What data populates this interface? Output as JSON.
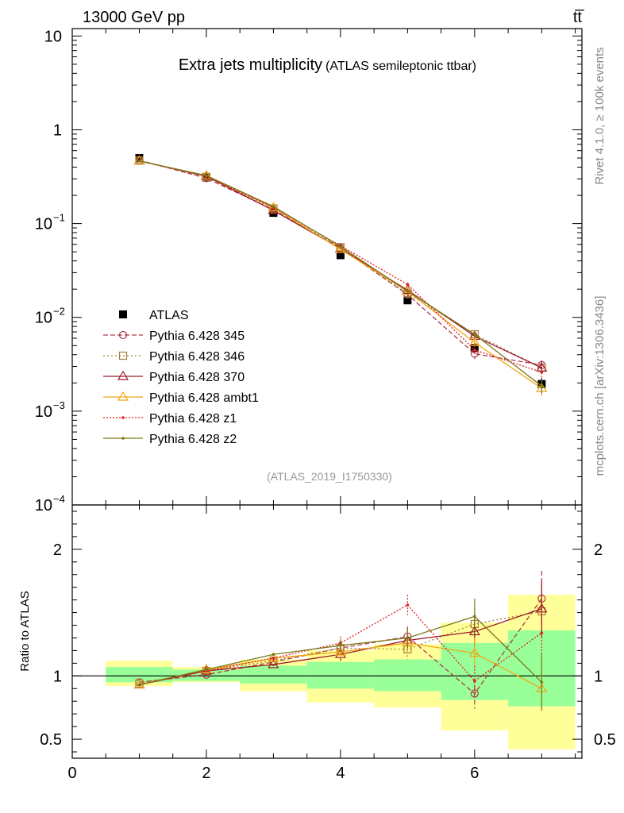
{
  "header": {
    "left": "13000 GeV pp",
    "right": "tt̅"
  },
  "side_labels": {
    "rivet": "Rivet 4.1.0, ≥ 100k events",
    "mcplots": "mcplots.cern.ch [arXiv:1306.3436]"
  },
  "colors": {
    "atlas": "#000000",
    "p345": "#b03a48",
    "p346": "#a68038",
    "p370": "#9c1a28",
    "ambt1": "#f0a818",
    "z1": "#e02020",
    "z2": "#7a7a18",
    "band_inner": "#99ff99",
    "band_outer": "#ffff99"
  },
  "chart_data": [
    {
      "type": "line",
      "title": "Extra jets multiplicity",
      "subtitle": "(ATLAS semileptonic ttbar)",
      "analysis_label": "(ATLAS_2019_I1750330)",
      "yscale": "log",
      "xlim": [
        0,
        7.6
      ],
      "ylim": [
        0.0001,
        12
      ],
      "y_ticks": [
        {
          "value": 10,
          "label": "10"
        },
        {
          "value": 1,
          "label": "1"
        },
        {
          "value": 0.1,
          "label": "10",
          "exp": "−1"
        },
        {
          "value": 0.01,
          "label": "10",
          "exp": "−2"
        },
        {
          "value": 0.001,
          "label": "10",
          "exp": "−3"
        },
        {
          "value": 0.0001,
          "label": "10",
          "exp": "−4"
        }
      ],
      "legend_position": "middle-left",
      "x": [
        1,
        2,
        3,
        4,
        5,
        6,
        7
      ],
      "data": {
        "name": "ATLAS",
        "values": [
          0.5,
          0.31,
          0.13,
          0.046,
          0.0152,
          0.0047,
          0.00195
        ],
        "errors": [
          0.03,
          0.015,
          0.008,
          0.003,
          0.0012,
          0.0006,
          0.0003
        ]
      },
      "series": [
        {
          "name": "Pythia 6.428 345",
          "key": "p345",
          "marker": "circle",
          "dash": "6,3",
          "values": [
            0.475,
            0.305,
            0.14,
            0.055,
            0.0175,
            0.0041,
            0.0031
          ],
          "errors": [
            0,
            0,
            0,
            0.002,
            0.0008,
            0.0005,
            0.0004
          ]
        },
        {
          "name": "Pythia 6.428 346",
          "key": "p346",
          "marker": "square",
          "dash": "2,3",
          "values": [
            0.47,
            0.315,
            0.145,
            0.056,
            0.018,
            0.0066,
            0.0029
          ],
          "errors": [
            0,
            0,
            0,
            0.002,
            0.0008,
            0.0006,
            0.0004
          ]
        },
        {
          "name": "Pythia 6.428 370",
          "key": "p370",
          "marker": "triangle",
          "dash": "",
          "values": [
            0.465,
            0.32,
            0.138,
            0.054,
            0.0195,
            0.0063,
            0.0029
          ],
          "errors": [
            0,
            0,
            0,
            0.002,
            0.0008,
            0.0006,
            0.0004
          ]
        },
        {
          "name": "Pythia 6.428 ambt1",
          "key": "ambt1",
          "marker": "triangle",
          "dash": "",
          "values": [
            0.465,
            0.325,
            0.148,
            0.053,
            0.019,
            0.0054,
            0.00175
          ],
          "errors": [
            0,
            0,
            0,
            0.002,
            0.0008,
            0.0006,
            0.0003
          ]
        },
        {
          "name": "Pythia 6.428 z1",
          "key": "z1",
          "marker": "dot",
          "dash": "2,2",
          "values": [
            0.465,
            0.32,
            0.148,
            0.058,
            0.0225,
            0.0045,
            0.0026
          ],
          "errors": [
            0,
            0,
            0,
            0.002,
            0.0008,
            0.0005,
            0.0004
          ]
        },
        {
          "name": "Pythia 6.428 z2",
          "key": "z2",
          "marker": "dot",
          "dash": "",
          "values": [
            0.465,
            0.325,
            0.152,
            0.057,
            0.019,
            0.0066,
            0.00185
          ],
          "errors": [
            0,
            0,
            0,
            0.002,
            0.0008,
            0.0006,
            0.0003
          ]
        }
      ]
    },
    {
      "type": "line",
      "ylabel": "Ratio to ATLAS",
      "xlim": [
        0,
        7.6
      ],
      "ylim": [
        0.35,
        2.35
      ],
      "x_ticks": [
        0,
        2,
        4,
        6
      ],
      "y_ticks": [
        0.5,
        1,
        2
      ],
      "reference_line": 1,
      "bands": [
        {
          "x0": 0.5,
          "x1": 1.5,
          "inner": [
            0.95,
            1.07
          ],
          "outer": [
            0.92,
            1.12
          ]
        },
        {
          "x0": 1.5,
          "x1": 2.5,
          "inner": [
            0.96,
            1.05
          ],
          "outer": [
            0.95,
            1.07
          ]
        },
        {
          "x0": 2.5,
          "x1": 3.5,
          "inner": [
            0.94,
            1.08
          ],
          "outer": [
            0.88,
            1.13
          ]
        },
        {
          "x0": 3.5,
          "x1": 4.5,
          "inner": [
            0.9,
            1.11
          ],
          "outer": [
            0.79,
            1.2
          ]
        },
        {
          "x0": 4.5,
          "x1": 5.5,
          "inner": [
            0.88,
            1.13
          ],
          "outer": [
            0.75,
            1.25
          ]
        },
        {
          "x0": 5.5,
          "x1": 6.5,
          "inner": [
            0.81,
            1.26
          ],
          "outer": [
            0.57,
            1.42
          ]
        },
        {
          "x0": 6.5,
          "x1": 7.5,
          "inner": [
            0.76,
            1.36
          ],
          "outer": [
            0.42,
            1.64
          ]
        }
      ],
      "x": [
        1,
        2,
        3,
        4,
        5,
        6,
        7
      ],
      "series": [
        {
          "name": "Pythia 6.428 345",
          "key": "p345",
          "marker": "circle",
          "dash": "6,3",
          "values": [
            0.95,
            1.01,
            1.11,
            1.22,
            1.31,
            0.86,
            1.61
          ],
          "errors": [
            0,
            0,
            0,
            0.05,
            0.08,
            0.12,
            0.22
          ]
        },
        {
          "name": "Pythia 6.428 346",
          "key": "p346",
          "marker": "square",
          "dash": "2,3",
          "values": [
            0.94,
            1.04,
            1.12,
            1.22,
            1.21,
            1.41,
            1.51
          ],
          "errors": [
            0,
            0,
            0,
            0.05,
            0.08,
            0.12,
            0.22
          ]
        },
        {
          "name": "Pythia 6.428 370",
          "key": "p370",
          "marker": "triangle",
          "dash": "",
          "values": [
            0.93,
            1.04,
            1.09,
            1.17,
            1.28,
            1.35,
            1.53
          ],
          "errors": [
            0,
            0,
            0,
            0.05,
            0.08,
            0.12,
            0.22
          ]
        },
        {
          "name": "Pythia 6.428 ambt1",
          "key": "ambt1",
          "marker": "triangle",
          "dash": "",
          "values": [
            0.93,
            1.05,
            1.14,
            1.19,
            1.26,
            1.18,
            0.9
          ],
          "errors": [
            0,
            0,
            0,
            0.05,
            0.08,
            0.12,
            0.18
          ]
        },
        {
          "name": "Pythia 6.428 z1",
          "key": "z1",
          "marker": "dot",
          "dash": "2,2",
          "values": [
            0.93,
            1.04,
            1.14,
            1.26,
            1.56,
            0.96,
            1.34
          ],
          "errors": [
            0,
            0,
            0,
            0.05,
            0.08,
            0.12,
            0.22
          ]
        },
        {
          "name": "Pythia 6.428 z2",
          "key": "z2",
          "marker": "dot",
          "dash": "",
          "values": [
            0.93,
            1.05,
            1.17,
            1.24,
            1.3,
            1.47,
            0.95
          ],
          "errors": [
            0,
            0,
            0,
            0.05,
            0.08,
            0.14,
            0.22
          ]
        }
      ]
    }
  ]
}
